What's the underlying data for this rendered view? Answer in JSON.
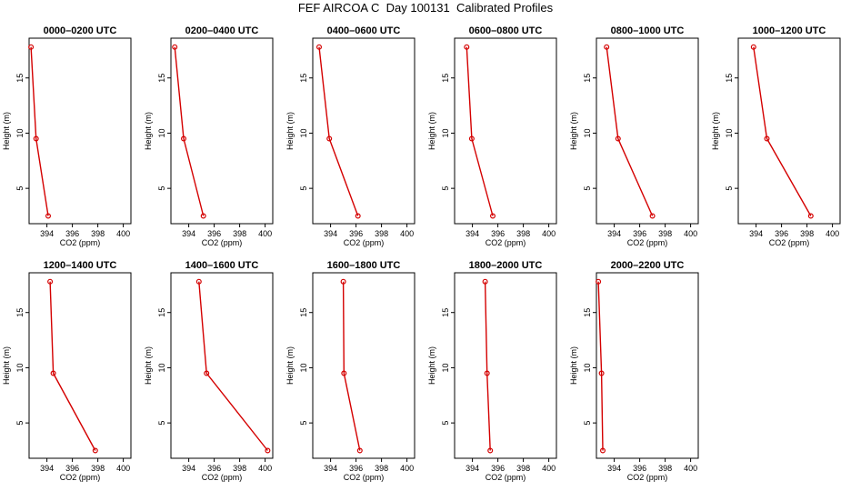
{
  "title": "FEF AIRCOA C  Day 100131  Calibrated Profiles",
  "colors": {
    "line": "#d40000",
    "axis": "#000000",
    "background": "#ffffff"
  },
  "chart_data": [
    {
      "type": "line",
      "title": "0000–0200 UTC",
      "xlabel": "CO2 (ppm)",
      "ylabel": "Height (m)",
      "xlim": [
        392.6,
        400.6
      ],
      "ylim": [
        1.8,
        18.6
      ],
      "xticks": [
        394,
        396,
        398,
        400
      ],
      "yticks": [
        5,
        10,
        15
      ],
      "grid": false,
      "series": [
        {
          "x": [
            392.75,
            393.15,
            394.1
          ],
          "y": [
            17.8,
            9.5,
            2.5
          ]
        }
      ]
    },
    {
      "type": "line",
      "title": "0200–0400 UTC",
      "xlabel": "CO2 (ppm)",
      "ylabel": "Height (m)",
      "xlim": [
        392.6,
        400.6
      ],
      "ylim": [
        1.8,
        18.6
      ],
      "xticks": [
        394,
        396,
        398,
        400
      ],
      "yticks": [
        5,
        10,
        15
      ],
      "grid": false,
      "series": [
        {
          "x": [
            392.9,
            393.6,
            395.15
          ],
          "y": [
            17.8,
            9.5,
            2.5
          ]
        }
      ]
    },
    {
      "type": "line",
      "title": "0400–0600 UTC",
      "xlabel": "CO2 (ppm)",
      "ylabel": "Height (m)",
      "xlim": [
        392.6,
        400.6
      ],
      "ylim": [
        1.8,
        18.6
      ],
      "xticks": [
        394,
        396,
        398,
        400
      ],
      "yticks": [
        5,
        10,
        15
      ],
      "grid": false,
      "series": [
        {
          "x": [
            393.1,
            393.9,
            396.15
          ],
          "y": [
            17.8,
            9.5,
            2.5
          ]
        }
      ]
    },
    {
      "type": "line",
      "title": "0600–0800 UTC",
      "xlabel": "CO2 (ppm)",
      "ylabel": "Height (m)",
      "xlim": [
        392.6,
        400.6
      ],
      "ylim": [
        1.8,
        18.6
      ],
      "xticks": [
        394,
        396,
        398,
        400
      ],
      "yticks": [
        5,
        10,
        15
      ],
      "grid": false,
      "series": [
        {
          "x": [
            393.55,
            393.95,
            395.6
          ],
          "y": [
            17.8,
            9.5,
            2.5
          ]
        }
      ]
    },
    {
      "type": "line",
      "title": "0800–1000 UTC",
      "xlabel": "CO2 (ppm)",
      "ylabel": "Height (m)",
      "xlim": [
        392.6,
        400.6
      ],
      "ylim": [
        1.8,
        18.6
      ],
      "xticks": [
        394,
        396,
        398,
        400
      ],
      "yticks": [
        5,
        10,
        15
      ],
      "grid": false,
      "series": [
        {
          "x": [
            393.4,
            394.3,
            397.0
          ],
          "y": [
            17.8,
            9.5,
            2.5
          ]
        }
      ]
    },
    {
      "type": "line",
      "title": "1000–1200 UTC",
      "xlabel": "CO2 (ppm)",
      "ylabel": "Height (m)",
      "xlim": [
        392.6,
        400.6
      ],
      "ylim": [
        1.8,
        18.6
      ],
      "xticks": [
        394,
        396,
        398,
        400
      ],
      "yticks": [
        5,
        10,
        15
      ],
      "grid": false,
      "series": [
        {
          "x": [
            393.8,
            394.85,
            398.3
          ],
          "y": [
            17.8,
            9.5,
            2.5
          ]
        }
      ]
    },
    {
      "type": "line",
      "title": "1200–1400 UTC",
      "xlabel": "CO2 (ppm)",
      "ylabel": "Height (m)",
      "xlim": [
        392.6,
        400.6
      ],
      "ylim": [
        1.8,
        18.6
      ],
      "xticks": [
        394,
        396,
        398,
        400
      ],
      "yticks": [
        5,
        10,
        15
      ],
      "grid": false,
      "series": [
        {
          "x": [
            394.25,
            394.5,
            397.8
          ],
          "y": [
            17.8,
            9.5,
            2.5
          ]
        }
      ]
    },
    {
      "type": "line",
      "title": "1400–1600 UTC",
      "xlabel": "CO2 (ppm)",
      "ylabel": "Height (m)",
      "xlim": [
        392.6,
        400.6
      ],
      "ylim": [
        1.8,
        18.6
      ],
      "xticks": [
        394,
        396,
        398,
        400
      ],
      "yticks": [
        5,
        10,
        15
      ],
      "grid": false,
      "series": [
        {
          "x": [
            394.8,
            395.4,
            400.2
          ],
          "y": [
            17.8,
            9.5,
            2.5
          ]
        }
      ]
    },
    {
      "type": "line",
      "title": "1600–1800 UTC",
      "xlabel": "CO2 (ppm)",
      "ylabel": "Height (m)",
      "xlim": [
        392.6,
        400.6
      ],
      "ylim": [
        1.8,
        18.6
      ],
      "xticks": [
        394,
        396,
        398,
        400
      ],
      "yticks": [
        5,
        10,
        15
      ],
      "grid": false,
      "series": [
        {
          "x": [
            395.0,
            395.05,
            396.3
          ],
          "y": [
            17.8,
            9.5,
            2.5
          ]
        }
      ]
    },
    {
      "type": "line",
      "title": "1800–2000 UTC",
      "xlabel": "CO2 (ppm)",
      "ylabel": "Height (m)",
      "xlim": [
        392.6,
        400.6
      ],
      "ylim": [
        1.8,
        18.6
      ],
      "xticks": [
        394,
        396,
        398,
        400
      ],
      "yticks": [
        5,
        10,
        15
      ],
      "grid": false,
      "series": [
        {
          "x": [
            395.0,
            395.15,
            395.4
          ],
          "y": [
            17.8,
            9.5,
            2.5
          ]
        }
      ]
    },
    {
      "type": "line",
      "title": "2000–2200 UTC",
      "xlabel": "CO2 (ppm)",
      "ylabel": "Height (m)",
      "xlim": [
        392.6,
        400.6
      ],
      "ylim": [
        1.8,
        18.6
      ],
      "xticks": [
        394,
        396,
        398,
        400
      ],
      "yticks": [
        5,
        10,
        15
      ],
      "grid": false,
      "series": [
        {
          "x": [
            392.75,
            393.0,
            393.1
          ],
          "y": [
            17.8,
            9.5,
            2.5
          ]
        }
      ]
    }
  ]
}
